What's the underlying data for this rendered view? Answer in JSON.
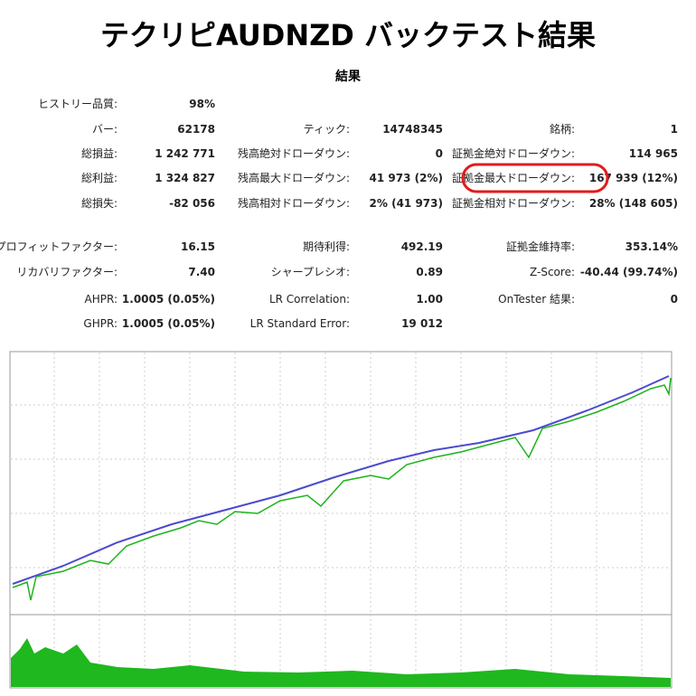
{
  "header": {
    "title": "テクリピAUDNZD バックテスト結果",
    "section": "結果"
  },
  "table": {
    "rows": [
      [
        {
          "label": "ヒストリー品質:",
          "value": "98%"
        }
      ],
      [
        {
          "label": "バー:",
          "value": "62178"
        },
        {
          "label": "ティック:",
          "value": "14748345"
        },
        {
          "label": "銘柄:",
          "value": "1"
        }
      ],
      [
        {
          "label": "総損益:",
          "value": "1 242 771"
        },
        {
          "label": "残高絶対ドローダウン:",
          "value": "0"
        },
        {
          "label": "証拠金絶対ドローダウン:",
          "value": "114 965"
        }
      ],
      [
        {
          "label": "総利益:",
          "value": "1 324 827"
        },
        {
          "label": "残高最大ドローダウン:",
          "value": "41 973 (2%)"
        },
        {
          "label": "証拠金最大ドローダウン:",
          "value": "167 939 (12%)"
        }
      ],
      [
        {
          "label": "総損失:",
          "value": "-82 056"
        },
        {
          "label": "残高相対ドローダウン:",
          "value": "2% (41 973)"
        },
        {
          "label": "証拠金相対ドローダウン:",
          "value": "28% (148 605)"
        }
      ],
      [
        {
          "label": "プロフィットファクター:",
          "value": "16.15"
        },
        {
          "label": "期待利得:",
          "value": "492.19"
        },
        {
          "label": "証拠金維持率:",
          "value": "353.14%"
        }
      ],
      [
        {
          "label": "リカバリファクター:",
          "value": "7.40"
        },
        {
          "label": "シャープレシオ:",
          "value": "0.89"
        },
        {
          "label": "Z-Score:",
          "value": "-40.44 (99.74%)"
        }
      ],
      [
        {
          "label": "AHPR:",
          "value": "1.0005 (0.05%)"
        },
        {
          "label": "LR Correlation:",
          "value": "1.00"
        },
        {
          "label": "OnTester 結果:",
          "value": "0"
        }
      ],
      [
        {
          "label": "GHPR:",
          "value": "1.0005 (0.05%)"
        },
        {
          "label": "LR Standard Error:",
          "value": "19 012"
        }
      ]
    ]
  }
}
